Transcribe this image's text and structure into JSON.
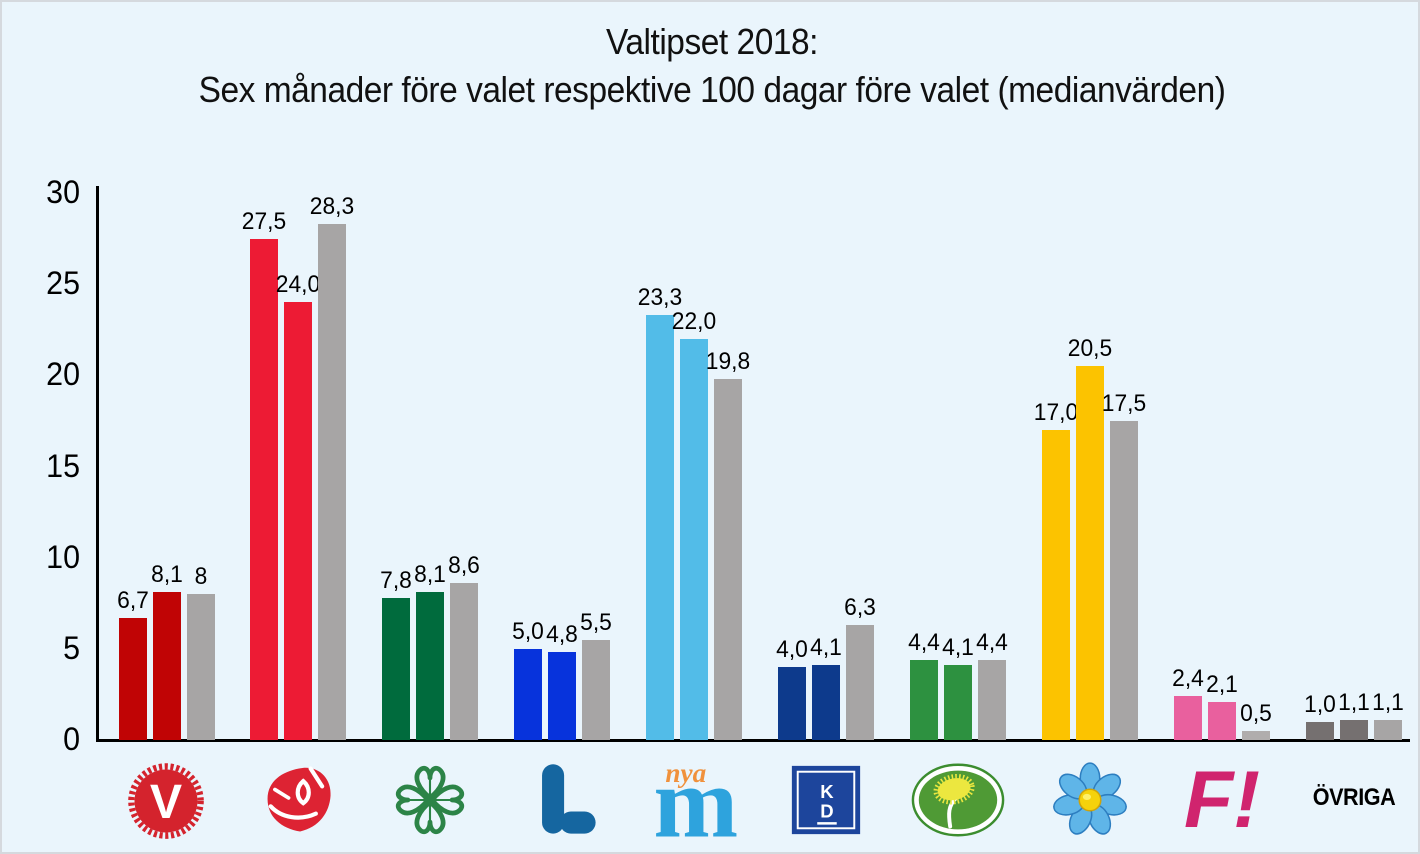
{
  "window": {
    "background_color": "#eaf5fc",
    "border_color": "#d5d9de"
  },
  "chart_data": {
    "type": "bar",
    "title_line1": "Valtipset 2018:",
    "title_line2": "Sex månader före valet respektive 100 dagar före valet (medianvärden)",
    "xlabel": "",
    "ylabel": "",
    "ylim": [
      0,
      30
    ],
    "yticks": [
      "0",
      "5",
      "10",
      "15",
      "20",
      "25",
      "30"
    ],
    "grid": "off",
    "legend": "none",
    "bars_per_group": 3,
    "axis_color": "#000000",
    "value_label_color": "#000000",
    "default_gray_color": "#a7a5a5",
    "groups": [
      {
        "party": "V",
        "logo_icon": "vansterpartiet-logo",
        "values": [
          6.7,
          8.1,
          8.0
        ],
        "labels": [
          "6,7",
          "8,1",
          "8"
        ],
        "bar_colors": [
          "#c00405",
          "#c00405",
          "#a7a5a5"
        ]
      },
      {
        "party": "S",
        "logo_icon": "socialdemokraterna-logo",
        "values": [
          27.5,
          24.0,
          28.3
        ],
        "labels": [
          "27,5",
          "24,0",
          "28,3"
        ],
        "bar_colors": [
          "#ed1b34",
          "#ed1b34",
          "#a7a5a5"
        ]
      },
      {
        "party": "C",
        "logo_icon": "centerpartiet-logo",
        "values": [
          7.8,
          8.1,
          8.6
        ],
        "labels": [
          "7,8",
          "8,1",
          "8,6"
        ],
        "bar_colors": [
          "#006b3d",
          "#006b3d",
          "#a7a5a5"
        ]
      },
      {
        "party": "L",
        "logo_icon": "liberalerna-logo",
        "values": [
          5.0,
          4.8,
          5.5
        ],
        "labels": [
          "5,0",
          "4,8",
          "5,5"
        ],
        "bar_colors": [
          "#0733dc",
          "#0733dc",
          "#a7a5a5"
        ]
      },
      {
        "party": "M",
        "logo_icon": "moderaterna-logo",
        "values": [
          23.3,
          22.0,
          19.8
        ],
        "labels": [
          "23,3",
          "22,0",
          "19,8"
        ],
        "bar_colors": [
          "#52bce8",
          "#52bce8",
          "#a7a5a5"
        ]
      },
      {
        "party": "KD",
        "logo_icon": "kristdemokraterna-logo",
        "values": [
          4.0,
          4.1,
          6.3
        ],
        "labels": [
          "4,0",
          "4,1",
          "6,3"
        ],
        "bar_colors": [
          "#0d3a8c",
          "#0d3a8c",
          "#a7a5a5"
        ]
      },
      {
        "party": "MP",
        "logo_icon": "miljopartiet-logo",
        "values": [
          4.4,
          4.1,
          4.4
        ],
        "labels": [
          "4,4",
          "4,1",
          "4,4"
        ],
        "bar_colors": [
          "#2d9140",
          "#2d9140",
          "#a7a5a5"
        ]
      },
      {
        "party": "SD",
        "logo_icon": "sverigedemokraterna-logo",
        "values": [
          17.0,
          20.5,
          17.5
        ],
        "labels": [
          "17,0",
          "20,5",
          "17,5"
        ],
        "bar_colors": [
          "#fcc300",
          "#fcc300",
          "#a7a5a5"
        ]
      },
      {
        "party": "FI",
        "logo_icon": "feministiskt-initiativ-logo",
        "values": [
          2.4,
          2.1,
          0.5
        ],
        "labels": [
          "2,4",
          "2,1",
          "0,5"
        ],
        "bar_colors": [
          "#e9609e",
          "#e9609e",
          "#b0adad"
        ]
      },
      {
        "party": "ÖVRIGA",
        "logo_icon": "none",
        "values": [
          1.0,
          1.1,
          1.1
        ],
        "labels": [
          "1,0",
          "1,1",
          "1,1"
        ],
        "bar_colors": [
          "#757070",
          "#757070",
          "#a7a5a5"
        ]
      }
    ]
  }
}
